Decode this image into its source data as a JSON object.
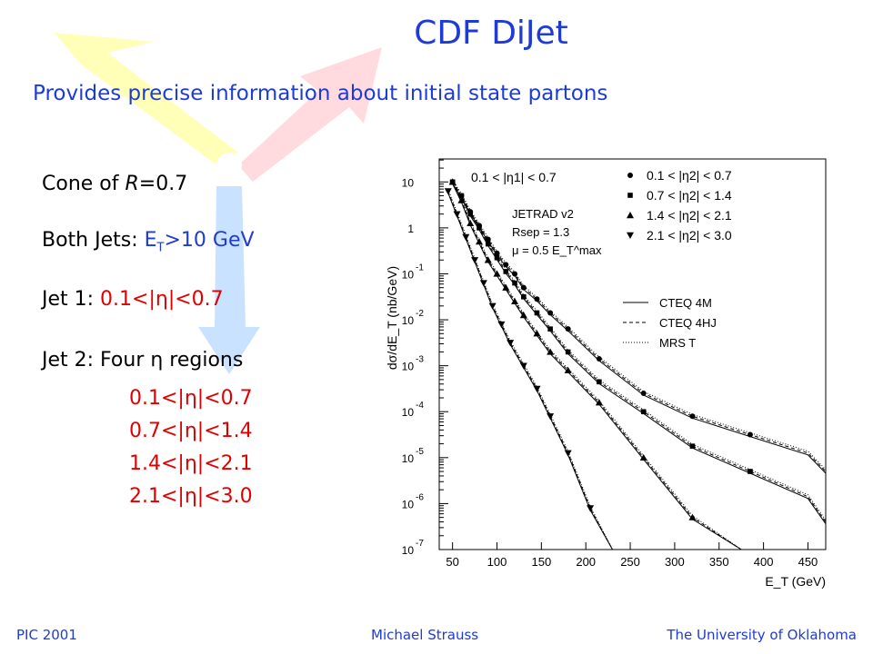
{
  "slide": {
    "title": "CDF DiJet",
    "subtitle": "Provides precise information about initial state partons",
    "cone_pre": "Cone of ",
    "cone_r": "R",
    "cone_post": "=0.7",
    "both_jets_label": "Both Jets: ",
    "both_jets_e": "E",
    "both_jets_sub": "T",
    "both_jets_val": ">10 GeV",
    "jet1_label": "Jet 1: ",
    "jet1_range": "0.1<|η|<0.7",
    "jet2_label": "Jet 2: Four η regions",
    "jet2_regions": [
      "0.1<|η|<0.7",
      "0.7<|η|<1.4",
      "1.4<|η|<2.1",
      "2.1<|η|<3.0"
    ],
    "accent_blue": "#1f3bd6",
    "accent_red": "#e00000"
  },
  "footer": {
    "left": "PIC 2001",
    "center": "Michael Strauss",
    "right": "The University of Oklahoma"
  },
  "chart_data": {
    "type": "scatter",
    "ylabel": "dσ/dE_T (nb/GeV)",
    "xlabel": "E_T (GeV)",
    "xlim": [
      35,
      470
    ],
    "ylim_log10": [
      -7,
      1.5
    ],
    "x_ticks": [
      50,
      100,
      150,
      200,
      250,
      300,
      350,
      400,
      450
    ],
    "y_ticks": [
      "10^-7",
      "10^-6",
      "10^-5",
      "10^-4",
      "10^-3",
      "10^-2",
      "10^-1",
      "1",
      "10"
    ],
    "annotations": [
      "0.1 < |η1| < 0.7",
      "JETRAD v2",
      "Rsep = 1.3",
      "μ = 0.5 E_T^max"
    ],
    "legend_placement": "top-right",
    "series": [
      {
        "name": "0.1 < |η2| < 0.7",
        "marker": "circle",
        "x": [
          50,
          60,
          70,
          80,
          90,
          100,
          110,
          120,
          130,
          145,
          160,
          180,
          215,
          265,
          320,
          385
        ],
        "y_log10": [
          1.0,
          0.7,
          0.35,
          0.05,
          -0.25,
          -0.55,
          -0.8,
          -1.0,
          -1.3,
          -1.55,
          -1.85,
          -2.2,
          -2.85,
          -3.6,
          -4.1,
          -4.5
        ]
      },
      {
        "name": "0.7 < |η2| < 1.4",
        "marker": "square",
        "x": [
          50,
          60,
          70,
          80,
          90,
          100,
          110,
          120,
          130,
          145,
          160,
          180,
          215,
          265,
          320,
          385
        ],
        "y_log10": [
          1.0,
          0.7,
          0.3,
          0.0,
          -0.35,
          -0.65,
          -0.95,
          -1.2,
          -1.5,
          -1.85,
          -2.2,
          -2.7,
          -3.35,
          -4.0,
          -4.75,
          -5.3
        ]
      },
      {
        "name": "1.4 < |η2| < 2.1",
        "marker": "triangle-up",
        "x": [
          50,
          60,
          70,
          80,
          90,
          100,
          110,
          120,
          130,
          145,
          160,
          180,
          215,
          265,
          320
        ],
        "y_log10": [
          1.0,
          0.6,
          0.1,
          -0.3,
          -0.7,
          -1.0,
          -1.3,
          -1.6,
          -1.9,
          -2.3,
          -2.7,
          -3.1,
          -3.8,
          -5.0,
          -6.3
        ]
      },
      {
        "name": "2.1 < |η2| < 3.0",
        "marker": "triangle-down",
        "x": [
          45,
          55,
          65,
          75,
          85,
          95,
          105,
          115,
          130,
          145,
          160,
          180,
          205
        ],
        "y_log10": [
          0.8,
          0.3,
          -0.2,
          -0.7,
          -1.2,
          -1.7,
          -2.1,
          -2.5,
          -3.0,
          -3.5,
          -4.1,
          -4.9,
          -6.1
        ]
      }
    ],
    "theory_curves": [
      "CTEQ 4M",
      "CTEQ 4HJ",
      "MRS  T"
    ]
  }
}
